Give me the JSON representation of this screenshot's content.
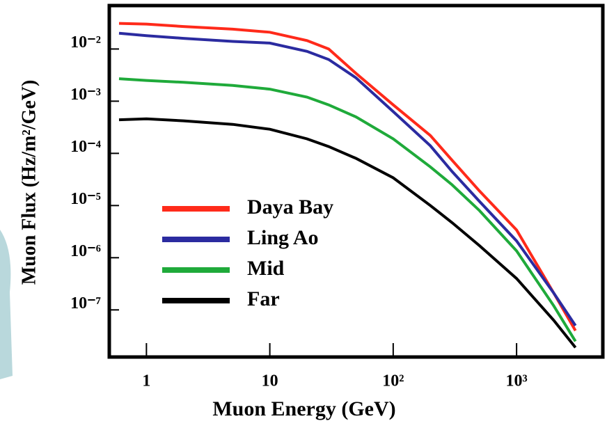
{
  "chart_data": {
    "type": "line",
    "x_label": "Muon Energy (GeV)",
    "y_label": "Muon Flux (Hz/m²/GeV)",
    "x": [
      0.6,
      1,
      2,
      5,
      10,
      20,
      30,
      50,
      100,
      200,
      300,
      500,
      1000,
      2000,
      3000
    ],
    "series": [
      {
        "name": "Daya Bay",
        "color": "#ff2a1a",
        "values": [
          0.031,
          0.03,
          0.027,
          0.024,
          0.021,
          0.0145,
          0.01,
          0.0034,
          0.00085,
          0.00022,
          7.4e-05,
          1.9e-05,
          3.4e-06,
          2.1e-07,
          4e-08
        ]
      },
      {
        "name": "Ling Ao",
        "color": "#2b2ba0",
        "values": [
          0.02,
          0.018,
          0.016,
          0.014,
          0.013,
          0.009,
          0.0063,
          0.0028,
          0.00063,
          0.00014,
          4.5e-05,
          1.2e-05,
          2.1e-06,
          2.1e-07,
          5e-08
        ]
      },
      {
        "name": "Mid",
        "color": "#1faa3a",
        "values": [
          0.0027,
          0.0025,
          0.0023,
          0.002,
          0.0017,
          0.0012,
          0.00085,
          0.0005,
          0.00019,
          5.5e-05,
          2.5e-05,
          8e-06,
          1.35e-06,
          1.2e-07,
          2.5e-08
        ]
      },
      {
        "name": "Far",
        "color": "#000000",
        "values": [
          0.00044,
          0.00046,
          0.00042,
          0.00036,
          0.00029,
          0.00019,
          0.000135,
          8e-05,
          3.4e-05,
          1e-05,
          4.7e-06,
          1.7e-06,
          4e-07,
          6.3e-08,
          1.9e-08
        ]
      }
    ],
    "x_log": true,
    "y_log": true,
    "xlim": [
      0.5,
      5000
    ],
    "ylim": [
      1.25e-08,
      0.068
    ],
    "xticks": [
      1,
      10,
      {
        "value": 100,
        "label": "10²"
      },
      {
        "value": 1000,
        "label": "10³"
      }
    ],
    "yticks": [
      {
        "value": 0.01,
        "label": "10⁻²"
      },
      {
        "value": 0.001,
        "label": "10⁻³"
      },
      {
        "value": 0.0001,
        "label": "10⁻⁴"
      },
      {
        "value": 1e-05,
        "label": "10⁻⁵"
      },
      {
        "value": 1e-06,
        "label": "10⁻⁶"
      },
      {
        "value": 1e-07,
        "label": "10⁻⁷"
      }
    ],
    "legend_position": "center-left",
    "grid": false
  }
}
